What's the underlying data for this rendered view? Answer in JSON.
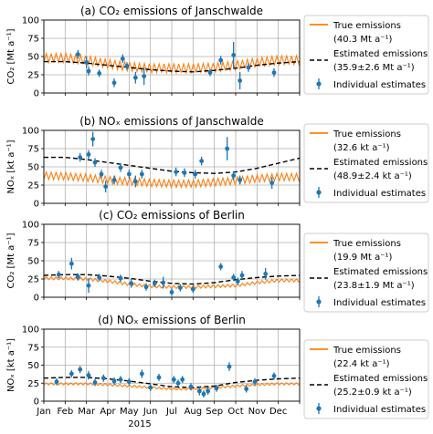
{
  "figure": {
    "year_label": "2015",
    "month_ticks": [
      "Jan",
      "Feb",
      "Mar",
      "Apr",
      "May",
      "Jun",
      "Jul",
      "Aug",
      "Sep",
      "Oct",
      "Nov",
      "Dec"
    ]
  },
  "colors": {
    "true": "#ff7f0e",
    "estimated": "#000000",
    "individual": "#1f77b4",
    "grid": "#b0b0b0"
  },
  "chart_data": [
    {
      "type": "line",
      "title": "(a) CO₂ emissions of Janschwalde",
      "ylabel": "CO₂ [Mt a⁻¹]",
      "ylim": [
        0,
        100
      ],
      "yticks": [
        "0",
        "25",
        "50",
        "75",
        "100"
      ],
      "grid": true,
      "legend_position": "right",
      "legend": {
        "true_label": "True emissions",
        "true_value": "(40.3 Mt a⁻¹)",
        "estimated_label": "Estimated emissions",
        "estimated_value": "(35.9±2.6 Mt a⁻¹)",
        "individual_label": "Individual estimates"
      },
      "true_emissions": {
        "base": [
          48,
          48,
          45,
          40,
          36,
          34,
          34,
          34,
          35,
          38,
          42,
          45
        ],
        "amplitude": 12
      },
      "estimated_emissions": {
        "x": [
          0,
          1,
          2,
          3,
          4,
          5,
          6,
          7,
          8,
          9,
          10,
          11,
          12
        ],
        "y": [
          43,
          43,
          41,
          38,
          35,
          32,
          30,
          29,
          31,
          34,
          38,
          41,
          43
        ]
      },
      "individual_estimates": [
        {
          "x": 1.6,
          "y": 53,
          "err": 6
        },
        {
          "x": 2.0,
          "y": 42,
          "err": 8
        },
        {
          "x": 2.1,
          "y": 30,
          "err": 6
        },
        {
          "x": 2.6,
          "y": 27,
          "err": 5
        },
        {
          "x": 3.3,
          "y": 14,
          "err": 6
        },
        {
          "x": 3.7,
          "y": 47,
          "err": 6
        },
        {
          "x": 3.9,
          "y": 37,
          "err": 5
        },
        {
          "x": 4.3,
          "y": 21,
          "err": 8
        },
        {
          "x": 4.7,
          "y": 23,
          "err": 12
        },
        {
          "x": 7.8,
          "y": 28,
          "err": 5
        },
        {
          "x": 8.3,
          "y": 45,
          "err": 6
        },
        {
          "x": 8.9,
          "y": 52,
          "err": 18
        },
        {
          "x": 9.2,
          "y": 17,
          "err": 12
        },
        {
          "x": 9.6,
          "y": 35,
          "err": 6
        },
        {
          "x": 10.8,
          "y": 28,
          "err": 6
        }
      ]
    },
    {
      "type": "line",
      "title": "(b) NOₓ emissions of Janschwalde",
      "ylabel": "NOₓ [kt a⁻¹]",
      "ylim": [
        0,
        100
      ],
      "yticks": [
        "0",
        "25",
        "50",
        "75",
        "100"
      ],
      "grid": true,
      "legend_position": "right",
      "legend": {
        "true_label": "True emissions",
        "true_value": "(32.6 kt a⁻¹)",
        "estimated_label": "Estimated emissions",
        "estimated_value": "(48.9±2.4 kt a⁻¹)",
        "individual_label": "Individual estimates"
      },
      "true_emissions": {
        "base": [
          38,
          37,
          35,
          32,
          30,
          28,
          27,
          27,
          29,
          31,
          34,
          36
        ],
        "amplitude": 10
      },
      "estimated_emissions": {
        "x": [
          0,
          1,
          2,
          3,
          4,
          5,
          6,
          7,
          8,
          9,
          10,
          11,
          12
        ],
        "y": [
          63,
          63,
          60,
          56,
          52,
          48,
          44,
          42,
          41,
          43,
          48,
          55,
          62
        ]
      },
      "individual_estimates": [
        {
          "x": 1.7,
          "y": 63,
          "err": 6
        },
        {
          "x": 2.1,
          "y": 67,
          "err": 6
        },
        {
          "x": 2.3,
          "y": 88,
          "err": 10
        },
        {
          "x": 2.4,
          "y": 56,
          "err": 6
        },
        {
          "x": 2.7,
          "y": 40,
          "err": 6
        },
        {
          "x": 2.9,
          "y": 23,
          "err": 8
        },
        {
          "x": 3.3,
          "y": 32,
          "err": 6
        },
        {
          "x": 3.6,
          "y": 49,
          "err": 6
        },
        {
          "x": 4.0,
          "y": 40,
          "err": 6
        },
        {
          "x": 4.3,
          "y": 30,
          "err": 8
        },
        {
          "x": 4.6,
          "y": 40,
          "err": 6
        },
        {
          "x": 6.2,
          "y": 43,
          "err": 6
        },
        {
          "x": 6.6,
          "y": 42,
          "err": 6
        },
        {
          "x": 7.1,
          "y": 40,
          "err": 6
        },
        {
          "x": 7.4,
          "y": 58,
          "err": 6
        },
        {
          "x": 8.6,
          "y": 75,
          "err": 16
        },
        {
          "x": 8.9,
          "y": 38,
          "err": 6
        },
        {
          "x": 9.2,
          "y": 32,
          "err": 6
        },
        {
          "x": 10.7,
          "y": 28,
          "err": 8
        }
      ]
    },
    {
      "type": "line",
      "title": "(c) CO₂ emissions of Berlin",
      "ylabel": "CO₂ [Mt a⁻¹]",
      "ylim": [
        0,
        100
      ],
      "yticks": [
        "0",
        "25",
        "50",
        "75",
        "100"
      ],
      "grid": true,
      "legend_position": "right",
      "legend": {
        "true_label": "True emissions",
        "true_value": "(19.9 Mt a⁻¹)",
        "estimated_label": "Estimated emissions",
        "estimated_value": "(23.8±1.9 Mt a⁻¹)",
        "individual_label": "Individual estimates"
      },
      "true_emissions": {
        "base": [
          26,
          26,
          25,
          22,
          18,
          15,
          14,
          14,
          15,
          16,
          20,
          23
        ],
        "amplitude": 4
      },
      "estimated_emissions": {
        "x": [
          0,
          1,
          2,
          3,
          4,
          5,
          6,
          7,
          8,
          9,
          10,
          11,
          12
        ],
        "y": [
          30,
          31,
          31,
          29,
          26,
          22,
          19,
          18,
          20,
          24,
          27,
          29,
          30
        ]
      },
      "individual_estimates": [
        {
          "x": 0.7,
          "y": 31,
          "err": 5
        },
        {
          "x": 1.3,
          "y": 46,
          "err": 8
        },
        {
          "x": 1.6,
          "y": 28,
          "err": 5
        },
        {
          "x": 2.1,
          "y": 16,
          "err": 10
        },
        {
          "x": 2.6,
          "y": 27,
          "err": 5
        },
        {
          "x": 3.6,
          "y": 26,
          "err": 5
        },
        {
          "x": 4.1,
          "y": 19,
          "err": 6
        },
        {
          "x": 4.8,
          "y": 14,
          "err": 5
        },
        {
          "x": 5.2,
          "y": 19,
          "err": 5
        },
        {
          "x": 5.6,
          "y": 20,
          "err": 8
        },
        {
          "x": 6.0,
          "y": 7,
          "err": 5
        },
        {
          "x": 6.4,
          "y": 13,
          "err": 5
        },
        {
          "x": 7.0,
          "y": 11,
          "err": 5
        },
        {
          "x": 8.3,
          "y": 42,
          "err": 5
        },
        {
          "x": 8.9,
          "y": 27,
          "err": 5
        },
        {
          "x": 9.1,
          "y": 22,
          "err": 5
        },
        {
          "x": 9.3,
          "y": 30,
          "err": 6
        },
        {
          "x": 10.4,
          "y": 32,
          "err": 8
        }
      ]
    },
    {
      "type": "line",
      "title": "(d) NOₓ emissions of Berlin",
      "ylabel": "NOₓ [kt a⁻¹]",
      "ylim": [
        0,
        100
      ],
      "yticks": [
        "0",
        "25",
        "50",
        "75",
        "100"
      ],
      "grid": true,
      "legend_position": "right",
      "legend": {
        "true_label": "True emissions",
        "true_value": "(22.4 kt a⁻¹)",
        "estimated_label": "Estimated emissions",
        "estimated_value": "(25.2±0.9 kt a⁻¹)",
        "individual_label": "Individual estimates"
      },
      "true_emissions": {
        "base": [
          24,
          24,
          24,
          23,
          21,
          19,
          17,
          17,
          19,
          21,
          23,
          24
        ],
        "amplitude": 3
      },
      "estimated_emissions": {
        "x": [
          0,
          1,
          2,
          3,
          4,
          5,
          6,
          7,
          8,
          9,
          10,
          11,
          12
        ],
        "y": [
          32,
          33,
          33,
          31,
          28,
          24,
          20,
          19,
          21,
          26,
          29,
          31,
          32
        ]
      },
      "individual_estimates": [
        {
          "x": 0.6,
          "y": 27,
          "err": 5
        },
        {
          "x": 1.3,
          "y": 38,
          "err": 5
        },
        {
          "x": 1.7,
          "y": 44,
          "err": 5
        },
        {
          "x": 2.1,
          "y": 36,
          "err": 6
        },
        {
          "x": 2.4,
          "y": 26,
          "err": 5
        },
        {
          "x": 2.8,
          "y": 32,
          "err": 5
        },
        {
          "x": 3.3,
          "y": 28,
          "err": 5
        },
        {
          "x": 3.6,
          "y": 30,
          "err": 5
        },
        {
          "x": 4.0,
          "y": 27,
          "err": 5
        },
        {
          "x": 4.6,
          "y": 38,
          "err": 6
        },
        {
          "x": 5.0,
          "y": 19,
          "err": 5
        },
        {
          "x": 5.4,
          "y": 33,
          "err": 5
        },
        {
          "x": 6.1,
          "y": 30,
          "err": 5
        },
        {
          "x": 6.3,
          "y": 25,
          "err": 5
        },
        {
          "x": 6.5,
          "y": 30,
          "err": 5
        },
        {
          "x": 6.9,
          "y": 20,
          "err": 5
        },
        {
          "x": 7.3,
          "y": 14,
          "err": 6
        },
        {
          "x": 7.5,
          "y": 10,
          "err": 5
        },
        {
          "x": 7.7,
          "y": 14,
          "err": 5
        },
        {
          "x": 8.1,
          "y": 18,
          "err": 5
        },
        {
          "x": 8.7,
          "y": 48,
          "err": 6
        },
        {
          "x": 9.5,
          "y": 17,
          "err": 5
        },
        {
          "x": 9.9,
          "y": 27,
          "err": 5
        },
        {
          "x": 10.8,
          "y": 35,
          "err": 5
        }
      ]
    }
  ]
}
